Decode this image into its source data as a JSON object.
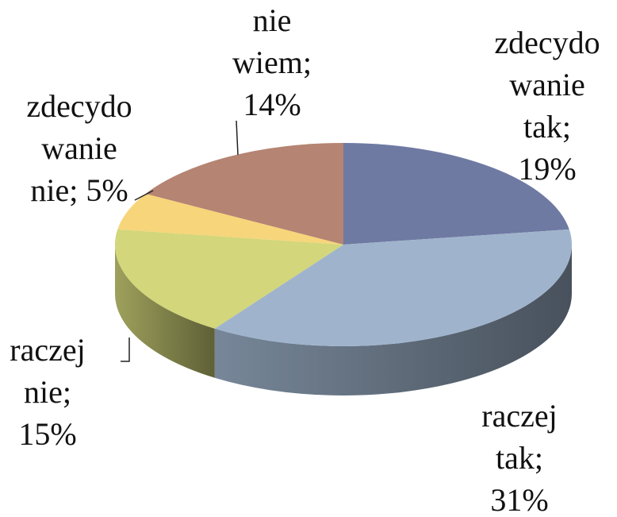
{
  "chart_data": {
    "type": "pie",
    "three_d": true,
    "categories": [
      "zdecydowanie tak",
      "raczej tak",
      "raczej nie",
      "zdecydowanie nie",
      "nie wiem"
    ],
    "values": [
      19,
      31,
      15,
      5,
      14
    ],
    "data_labels": [
      [
        "zdecydo",
        "wanie",
        "tak;",
        "19%"
      ],
      [
        "raczej",
        "tak;",
        "31%"
      ],
      [
        "raczej",
        "nie;",
        "15%"
      ],
      [
        "zdecydo",
        "wanie",
        "nie; 5%"
      ],
      [
        "nie",
        "wiem;",
        "14%"
      ]
    ],
    "colors": [
      "#6f7aa3",
      "#9fb4cc",
      "#d3d67a",
      "#f7d57a",
      "#b58472"
    ]
  }
}
